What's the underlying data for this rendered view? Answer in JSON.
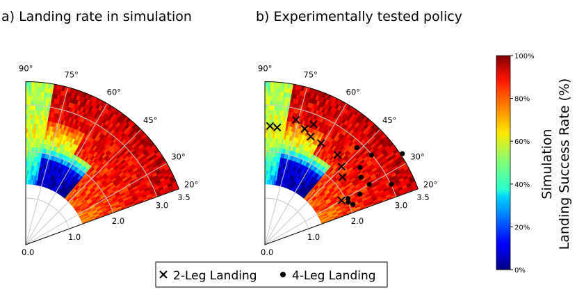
{
  "chart_data": [
    {
      "type": "polar-heatmap",
      "title": "a) Landing rate in simulation",
      "r_ticks": [
        "0.0",
        "1.0",
        "2.0",
        "3.0",
        "3.5"
      ],
      "r_tick_values": [
        0.0,
        1.0,
        2.0,
        3.0,
        3.5
      ],
      "theta_ticks": [
        "20°",
        "30°",
        "45°",
        "60°",
        "75°",
        "90°"
      ],
      "theta_tick_values": [
        20,
        30,
        45,
        60,
        75,
        90
      ],
      "theta_range_deg": [
        20,
        90
      ],
      "r_range": [
        0,
        3.5
      ],
      "data_r_range": [
        1.3,
        3.5
      ],
      "colorbar": {
        "label_line1": "Simulation",
        "label_line2": "Landing Success Rate (%)",
        "ticks": [
          "0%",
          "20%",
          "40%",
          "60%",
          "80%",
          "100%"
        ],
        "range": [
          0,
          100
        ]
      },
      "region_mean_success_pct": [
        {
          "theta": [
            80,
            90
          ],
          "r": [
            1.3,
            3.5
          ],
          "value": 38
        },
        {
          "theta": [
            55,
            80
          ],
          "r": [
            1.3,
            2.2
          ],
          "value": 10
        },
        {
          "theta": [
            45,
            75
          ],
          "r": [
            2.2,
            3.5
          ],
          "value": 88
        },
        {
          "theta": [
            20,
            45
          ],
          "r": [
            1.3,
            3.5
          ],
          "value": 85
        }
      ]
    },
    {
      "type": "scatter-on-polar",
      "title": "b) Experimentally tested policy",
      "legend": [
        {
          "marker": "x",
          "label": "2-Leg Landing"
        },
        {
          "marker": "o",
          "label": "4-Leg Landing"
        }
      ],
      "series": [
        {
          "name": "2-Leg Landing",
          "marker": "x",
          "points_theta_deg_r": [
            [
              87.5,
              2.55
            ],
            [
              84,
              2.53
            ],
            [
              76,
              2.76
            ],
            [
              71,
              2.63
            ],
            [
              68,
              2.79
            ],
            [
              67,
              2.52
            ],
            [
              61,
              2.49
            ],
            [
              51,
              2.48
            ],
            [
              45.5,
              2.35
            ],
            [
              41,
              2.21
            ],
            [
              30,
              1.9
            ]
          ]
        },
        {
          "name": "4-Leg Landing",
          "marker": "o",
          "points_theta_deg_r": [
            [
              46.5,
              2.87
            ],
            [
              40,
              2.99
            ],
            [
              33.5,
              3.54
            ],
            [
              39,
              2.63
            ],
            [
              30,
              2.59
            ],
            [
              35,
              2.52
            ],
            [
              28,
              2.31
            ],
            [
              24.5,
              2.08
            ],
            [
              29,
              2.04
            ],
            [
              27,
              2.01
            ],
            [
              25.5,
              3.01
            ]
          ]
        }
      ]
    }
  ]
}
